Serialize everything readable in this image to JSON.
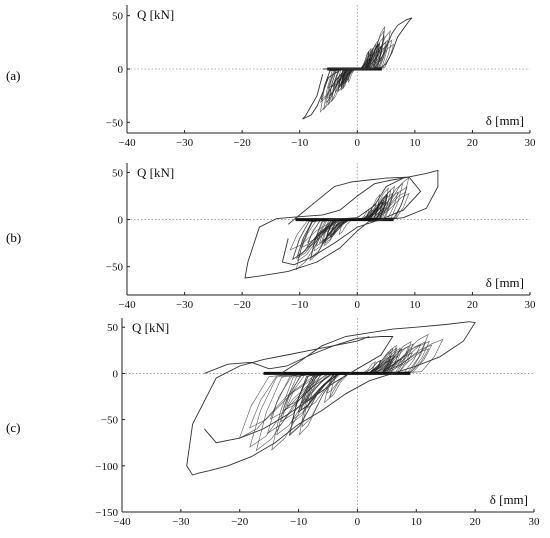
{
  "chart_data": [
    {
      "type": "line",
      "panel_label": "(a)",
      "xlabel": "δ [mm]",
      "ylabel": "Q [kN]",
      "xlim": [
        -40,
        30
      ],
      "ylim": [
        -60,
        60
      ],
      "xticks": [
        -40,
        -30,
        -20,
        -10,
        0,
        10,
        20,
        30
      ],
      "yticks": [
        -50,
        0,
        50
      ],
      "grid": false,
      "zero_lines": "dotted",
      "series": [
        {
          "x": [
            -6,
            3,
            4,
            5,
            6,
            7,
            8.5,
            9.5,
            9,
            7,
            6,
            5,
            4,
            2,
            -3,
            -5,
            -6,
            -7,
            -8,
            -9.5,
            -9,
            -7,
            -6
          ],
          "y": [
            0,
            1,
            8,
            20,
            33,
            41,
            46,
            48,
            45,
            30,
            15,
            5,
            1,
            0,
            -1,
            -8,
            -22,
            -35,
            -43,
            -47,
            -44,
            -25,
            -5
          ]
        }
      ],
      "dense_loops": {
        "x_range": [
          -9.5,
          9.5
        ],
        "y_range": [
          -47,
          48
        ],
        "density": "high"
      }
    },
    {
      "type": "line",
      "panel_label": "(b)",
      "xlabel": "δ [mm]",
      "ylabel": "Q [kN]",
      "xlim": [
        -40,
        30
      ],
      "ylim": [
        -80,
        60
      ],
      "xticks": [
        -40,
        -30,
        -20,
        -10,
        0,
        10,
        20,
        30
      ],
      "yticks": [
        -50,
        0,
        50
      ],
      "grid": false,
      "zero_lines": "dotted",
      "series": [
        {
          "x": [
            -5,
            0,
            3,
            5,
            8,
            12,
            14,
            14,
            12,
            8,
            5,
            2,
            0,
            -3,
            -7,
            -12,
            -17,
            -19.5,
            -19,
            -17,
            -14,
            -10,
            -6,
            -3,
            0,
            3,
            6,
            8
          ],
          "y": [
            0,
            2,
            15,
            35,
            44,
            49,
            52,
            35,
            12,
            2,
            0,
            -2,
            -12,
            -30,
            -45,
            -55,
            -60,
            -62,
            -45,
            -8,
            1,
            3,
            5,
            10,
            25,
            38,
            42,
            44
          ]
        },
        {
          "x": [
            -12,
            -10,
            -7,
            -4,
            -1,
            2,
            5,
            9,
            11,
            8,
            4,
            0,
            -4,
            -8,
            -11,
            -13,
            -12
          ],
          "y": [
            -5,
            5,
            20,
            35,
            40,
            42,
            44,
            45,
            30,
            10,
            0,
            -8,
            -25,
            -40,
            -48,
            -45,
            -20
          ]
        }
      ],
      "dense_loops": {
        "x_range": [
          -19.5,
          14
        ],
        "y_range": [
          -62,
          52
        ],
        "density": "high"
      }
    },
    {
      "type": "line",
      "panel_label": "(c)",
      "xlabel": "δ [mm]",
      "ylabel": "Q [kN]",
      "xlim": [
        -40,
        30
      ],
      "ylim": [
        -150,
        60
      ],
      "xticks": [
        -40,
        -30,
        -20,
        -10,
        0,
        10,
        20,
        30
      ],
      "yticks": [
        -150,
        -100,
        -50,
        0,
        50
      ],
      "grid": false,
      "zero_lines": "dotted",
      "series": [
        {
          "x": [
            -13,
            -10,
            -6,
            -2,
            2,
            6,
            10,
            15,
            19,
            20,
            18,
            14,
            10,
            6,
            2,
            -2,
            -6,
            -10,
            -14,
            -18,
            -22,
            -25,
            -27,
            -28,
            -29,
            -28,
            -24,
            -20,
            -16,
            -12,
            -8,
            -4,
            0,
            2
          ],
          "y": [
            0,
            12,
            30,
            40,
            44,
            48,
            50,
            53,
            56,
            55,
            35,
            18,
            8,
            0,
            -8,
            -22,
            -40,
            -55,
            -75,
            -90,
            -100,
            -105,
            -108,
            -110,
            -100,
            -55,
            -5,
            8,
            15,
            20,
            25,
            30,
            35,
            40
          ]
        },
        {
          "x": [
            -26,
            -22,
            -18,
            -15,
            -12,
            -8,
            -4,
            0,
            4,
            6,
            4,
            0,
            -4,
            -8,
            -12,
            -16,
            -20,
            -24,
            -26
          ],
          "y": [
            0,
            10,
            12,
            5,
            8,
            20,
            30,
            38,
            40,
            40,
            20,
            5,
            -10,
            -28,
            -45,
            -60,
            -70,
            -75,
            -60
          ]
        }
      ],
      "dense_loops": {
        "x_range": [
          -29,
          20
        ],
        "y_range": [
          -110,
          56
        ],
        "density": "high"
      }
    }
  ]
}
